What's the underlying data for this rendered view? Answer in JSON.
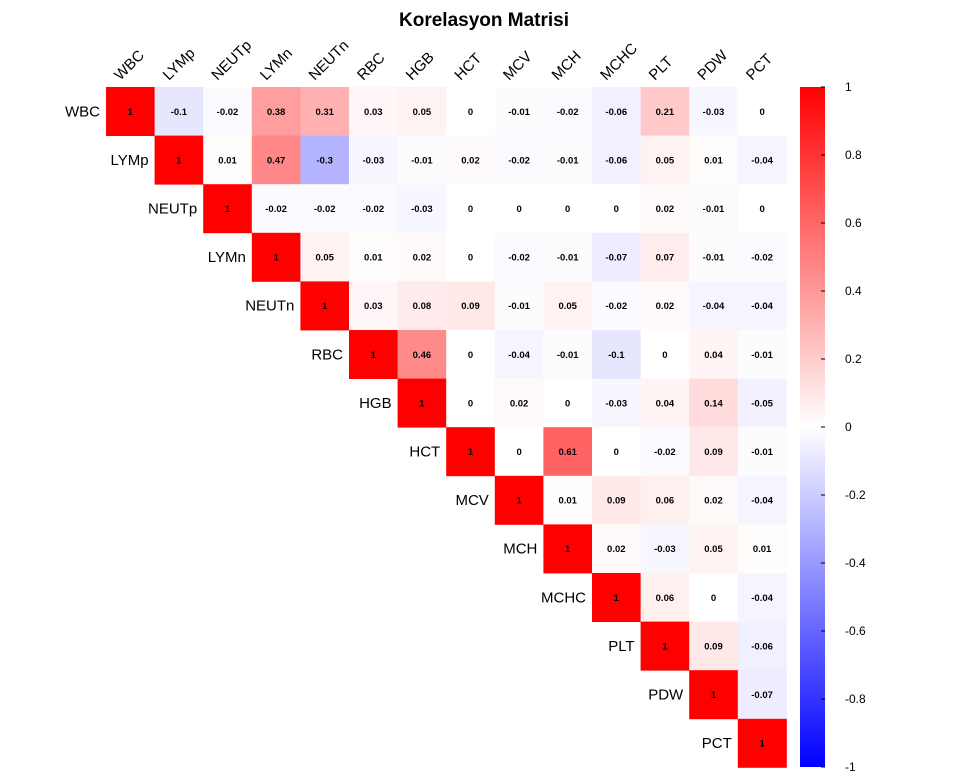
{
  "chart_data": {
    "type": "heatmap",
    "title": "Korelasyon Matrisi",
    "layout": "upper-triangle",
    "variables": [
      "WBC",
      "LYMp",
      "NEUTp",
      "LYMn",
      "NEUTn",
      "RBC",
      "HGB",
      "HCT",
      "MCV",
      "MCH",
      "MCHC",
      "PLT",
      "PDW",
      "PCT"
    ],
    "matrix_upper": [
      [
        "1",
        "-0.1",
        "-0.02",
        "0.38",
        "0.31",
        "0.03",
        "0.05",
        "0",
        "-0.01",
        "-0.02",
        "-0.06",
        "0.21",
        "-0.03",
        "0"
      ],
      [
        "1",
        "0.01",
        "0.47",
        "-0.3",
        "-0.03",
        "-0.01",
        "0.02",
        "-0.02",
        "-0.01",
        "-0.06",
        "0.05",
        "0.01",
        "-0.04"
      ],
      [
        "1",
        "-0.02",
        "-0.02",
        "-0.02",
        "-0.03",
        "0",
        "0",
        "0",
        "0",
        "0.02",
        "-0.01",
        "0"
      ],
      [
        "1",
        "0.05",
        "0.01",
        "0.02",
        "0",
        "-0.02",
        "-0.01",
        "-0.07",
        "0.07",
        "-0.01",
        "-0.02"
      ],
      [
        "1",
        "0.03",
        "0.08",
        "0.09",
        "-0.01",
        "0.05",
        "-0.02",
        "0.02",
        "-0.04",
        "-0.04"
      ],
      [
        "1",
        "0.46",
        "0",
        "-0.04",
        "-0.01",
        "-0.1",
        "0",
        "0.04",
        "-0.01"
      ],
      [
        "1",
        "0",
        "0.02",
        "0",
        "-0.03",
        "0.04",
        "0.14",
        "-0.05"
      ],
      [
        "1",
        "0",
        "0.61",
        "0",
        "-0.02",
        "0.09",
        "-0.01"
      ],
      [
        "1",
        "0.01",
        "0.09",
        "0.06",
        "0.02",
        "-0.04"
      ],
      [
        "1",
        "0.02",
        "-0.03",
        "0.05",
        "0.01"
      ],
      [
        "1",
        "0.06",
        "0",
        "-0.04"
      ],
      [
        "1",
        "0.09",
        "-0.06"
      ],
      [
        "1",
        "-0.07"
      ],
      [
        "1"
      ]
    ],
    "color_scale": {
      "range": [
        -1,
        1
      ],
      "low_color": "#0000ff",
      "mid_color": "#ffffff",
      "high_color": "#ff0000",
      "ticks": [
        "1",
        "0.8",
        "0.6",
        "0.4",
        "0.2",
        "0",
        "-0.2",
        "-0.4",
        "-0.6",
        "-0.8",
        "-1"
      ]
    },
    "legend": "right"
  }
}
